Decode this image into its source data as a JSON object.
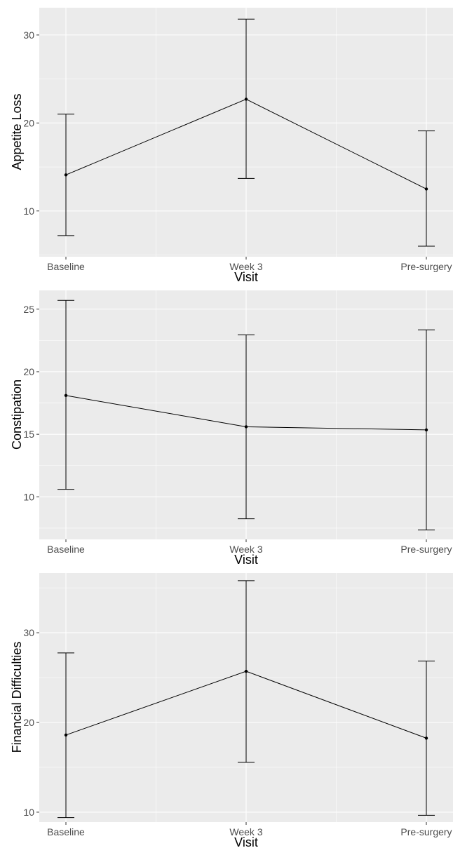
{
  "chart_data": [
    {
      "type": "line",
      "xlabel": "Visit",
      "ylabel": "Appetite Loss",
      "categories": [
        "Baseline",
        "Week 3",
        "Pre-surgery"
      ],
      "values": [
        14.1,
        22.7,
        12.5
      ],
      "error_low": [
        7.2,
        13.7,
        6.0
      ],
      "error_high": [
        21.0,
        31.8,
        19.1
      ],
      "ylim": [
        4.8,
        33.1
      ],
      "yticks": [
        10,
        20,
        30
      ],
      "grid": true
    },
    {
      "type": "line",
      "xlabel": "Visit",
      "ylabel": "Constipation",
      "categories": [
        "Baseline",
        "Week 3",
        "Pre-surgery"
      ],
      "values": [
        18.1,
        15.6,
        15.35
      ],
      "error_low": [
        10.6,
        8.25,
        7.35
      ],
      "error_high": [
        25.7,
        22.95,
        23.35
      ],
      "ylim": [
        6.6,
        26.5
      ],
      "yticks": [
        10,
        15,
        20,
        25
      ],
      "grid": true
    },
    {
      "type": "line",
      "xlabel": "Visit",
      "ylabel": "Financial Difficulties",
      "categories": [
        "Baseline",
        "Week 3",
        "Pre-surgery"
      ],
      "values": [
        18.6,
        25.7,
        18.25
      ],
      "error_low": [
        9.4,
        15.55,
        9.65
      ],
      "error_high": [
        27.75,
        35.8,
        26.85
      ],
      "ylim": [
        8.9,
        36.65
      ],
      "yticks": [
        10,
        20,
        30
      ],
      "grid": true
    }
  ]
}
